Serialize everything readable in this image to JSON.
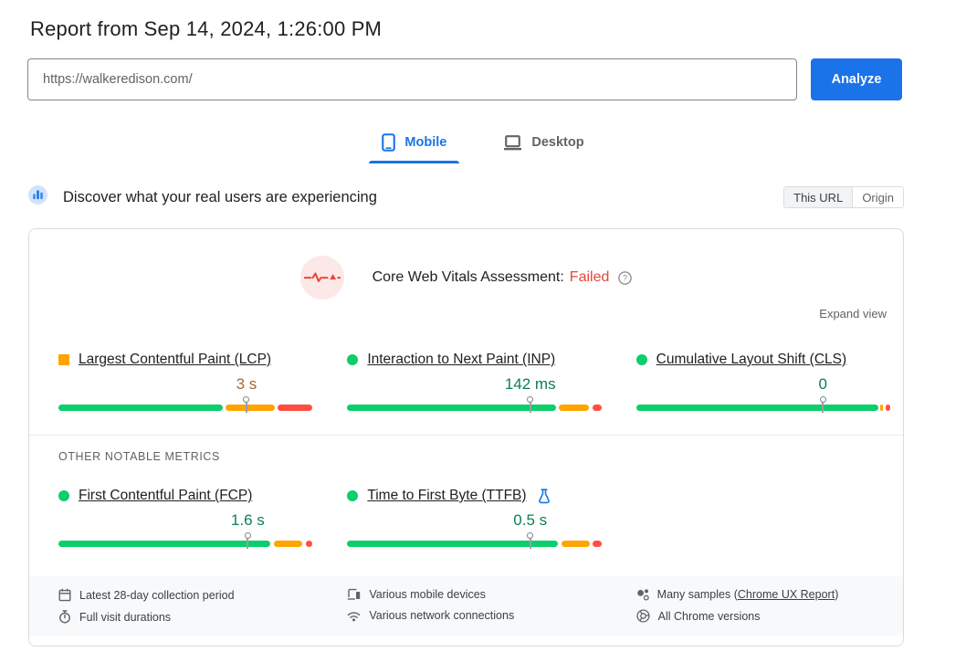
{
  "colors": {
    "accent": "#1a73e8",
    "good": "#0cce6b",
    "ni": "#ffa400",
    "poor": "#ff4e42",
    "good-text": "#0d8050",
    "ni-text": "#a9652e",
    "failed": "#e8453c",
    "border": "#dadce0"
  },
  "page": {
    "title": "Report from Sep 14, 2024, 1:26:00 PM"
  },
  "url_form": {
    "value": "https://walkeredison.com/",
    "analyze_label": "Analyze"
  },
  "tabs": [
    {
      "label": "Mobile",
      "active": true
    },
    {
      "label": "Desktop",
      "active": false
    }
  ],
  "field": {
    "heading": "Discover what your real users are experiencing",
    "scope": [
      {
        "label": "This URL",
        "selected": true
      },
      {
        "label": "Origin",
        "selected": false
      }
    ],
    "assessment_prefix": "Core Web Vitals Assessment:",
    "assessment_status": "Failed",
    "expand_label": "Expand view",
    "other_metrics_label": "OTHER NOTABLE METRICS"
  },
  "metrics": {
    "core": [
      {
        "name": "Largest Contentful Paint (LCP)",
        "value": "3 s",
        "rating": "ni",
        "marker_pct": 74,
        "segments": [
          {
            "color": "good",
            "start": 0,
            "end": 64.5
          },
          {
            "color": "ni",
            "start": 65.8,
            "end": 85
          },
          {
            "color": "poor",
            "start": 86.3,
            "end": 100
          }
        ]
      },
      {
        "name": "Interaction to Next Paint (INP)",
        "value": "142 ms",
        "rating": "good",
        "marker_pct": 72,
        "segments": [
          {
            "color": "good",
            "start": 0,
            "end": 82
          },
          {
            "color": "ni",
            "start": 83.3,
            "end": 95.2
          },
          {
            "color": "poor",
            "start": 96.5,
            "end": 100
          }
        ]
      },
      {
        "name": "Cumulative Layout Shift (CLS)",
        "value": "0",
        "rating": "good",
        "marker_pct": 73.5,
        "segments": [
          {
            "color": "good",
            "start": 0,
            "end": 95.2
          },
          {
            "color": "ni",
            "start": 96.2,
            "end": 97.3
          },
          {
            "color": "poor",
            "start": 98.3,
            "end": 100
          }
        ]
      }
    ],
    "other": [
      {
        "name": "First Contentful Paint (FCP)",
        "value": "1.6 s",
        "rating": "good",
        "marker_pct": 74.5,
        "segments": [
          {
            "color": "good",
            "start": 0,
            "end": 83.5
          },
          {
            "color": "ni",
            "start": 84.8,
            "end": 96
          },
          {
            "color": "poor",
            "start": 97.3,
            "end": 100
          }
        ]
      },
      {
        "name": "Time to First Byte (TTFB)",
        "value": "0.5 s",
        "rating": "good",
        "marker_pct": 72,
        "experimental": true,
        "segments": [
          {
            "color": "good",
            "start": 0,
            "end": 83
          },
          {
            "color": "ni",
            "start": 84.3,
            "end": 95.3
          },
          {
            "color": "poor",
            "start": 96.6,
            "end": 100
          }
        ]
      }
    ]
  },
  "footer": {
    "columns": [
      {
        "items": [
          {
            "icon": "calendar-icon",
            "text": "Latest 28-day collection period"
          },
          {
            "icon": "stopwatch-icon",
            "text": "Full visit durations"
          }
        ]
      },
      {
        "items": [
          {
            "icon": "devices-icon",
            "text": "Various mobile devices"
          },
          {
            "icon": "wifi-icon",
            "text": "Various network connections"
          }
        ]
      },
      {
        "items": [
          {
            "icon": "samples-icon",
            "text_before": "Many samples (",
            "link_text": "Chrome UX Report",
            "text_after": ")"
          },
          {
            "icon": "chrome-icon",
            "text": "All Chrome versions"
          }
        ]
      }
    ]
  }
}
